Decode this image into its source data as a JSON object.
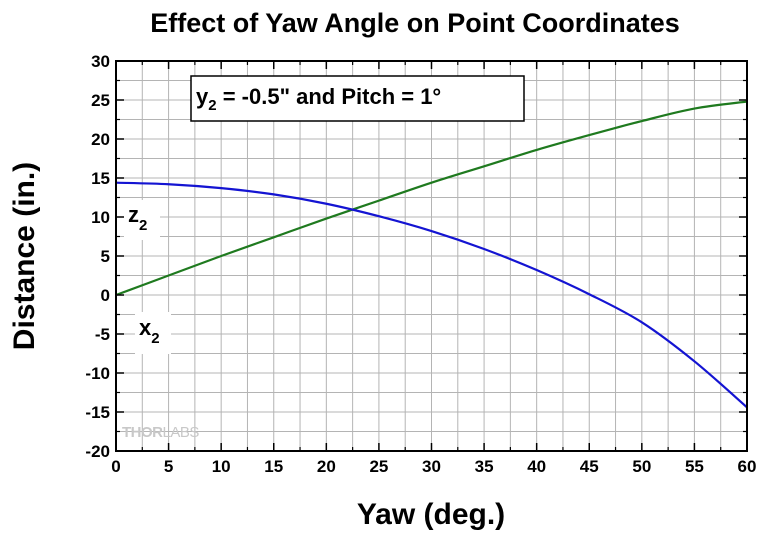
{
  "chart_data": {
    "type": "line",
    "title": "Effect of Yaw Angle on Point Coordinates",
    "xlabel": "Yaw (deg.)",
    "ylabel": "Distance (in.)",
    "xlim": [
      0,
      60
    ],
    "ylim": [
      -20,
      30
    ],
    "xticks": [
      0,
      5,
      10,
      15,
      20,
      25,
      30,
      35,
      40,
      45,
      50,
      55,
      60
    ],
    "yticks": [
      -20,
      -15,
      -10,
      -5,
      0,
      5,
      10,
      15,
      20,
      25,
      30
    ],
    "grid": true,
    "annotation": {
      "main": "y",
      "sub": "2",
      "rest": " = -0.5\" and Pitch = 1°"
    },
    "series": [
      {
        "label_main": "z",
        "label_sub": "2",
        "color": "#1f7a1f",
        "x": [
          0,
          5,
          10,
          15,
          20,
          25,
          30,
          35,
          40,
          45,
          50,
          55,
          60
        ],
        "y": [
          0,
          2.5,
          5.0,
          7.4,
          9.8,
          12.1,
          14.4,
          16.5,
          18.6,
          20.5,
          22.3,
          23.9,
          24.8
        ]
      },
      {
        "label_main": "x",
        "label_sub": "2",
        "color": "#1414d2",
        "x": [
          0,
          5,
          10,
          15,
          20,
          25,
          30,
          35,
          40,
          45,
          50,
          55,
          60
        ],
        "y": [
          14.4,
          14.2,
          13.7,
          12.9,
          11.7,
          10.1,
          8.2,
          5.9,
          3.2,
          0.1,
          -3.5,
          -8.5,
          -14.4
        ]
      }
    ],
    "watermark": {
      "part1": "THOR",
      "part2": "LABS"
    }
  }
}
